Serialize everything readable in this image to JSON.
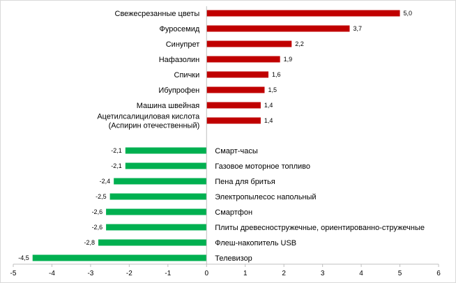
{
  "chart_data": {
    "type": "bar",
    "orientation": "horizontal",
    "xlim": [
      -5,
      6
    ],
    "x_ticks": [
      -5,
      -4,
      -3,
      -2,
      -1,
      0,
      1,
      2,
      3,
      4,
      5,
      6
    ],
    "positive_color": "#c00000",
    "negative_color": "#00b050",
    "grid": false,
    "series": [
      {
        "name": "positive",
        "items": [
          {
            "label": [
              "Свежесрезанные цветы"
            ],
            "value": 5.0,
            "value_label": "5,0"
          },
          {
            "label": [
              "Фуросемид"
            ],
            "value": 3.7,
            "value_label": "3,7"
          },
          {
            "label": [
              "Синупрет"
            ],
            "value": 2.2,
            "value_label": "2,2"
          },
          {
            "label": [
              "Нафазолин"
            ],
            "value": 1.9,
            "value_label": "1,9"
          },
          {
            "label": [
              "Спички"
            ],
            "value": 1.6,
            "value_label": "1,6"
          },
          {
            "label": [
              "Ибупрофен"
            ],
            "value": 1.5,
            "value_label": "1,5"
          },
          {
            "label": [
              "Машина швейная"
            ],
            "value": 1.4,
            "value_label": "1,4"
          },
          {
            "label": [
              "Ацетилсалициловая кислота",
              "(Аспирин отечественный)"
            ],
            "value": 1.4,
            "value_label": "1,4"
          }
        ]
      },
      {
        "name": "negative",
        "items": [
          {
            "label": [
              "Смарт-часы"
            ],
            "value": -2.1,
            "value_label": "-2,1"
          },
          {
            "label": [
              "Газовое моторное топливо"
            ],
            "value": -2.1,
            "value_label": "-2,1"
          },
          {
            "label": [
              "Пена для бритья"
            ],
            "value": -2.4,
            "value_label": "-2,4"
          },
          {
            "label": [
              "Электропылесос напольный"
            ],
            "value": -2.5,
            "value_label": "-2,5"
          },
          {
            "label": [
              "Смартфон"
            ],
            "value": -2.6,
            "value_label": "-2,6"
          },
          {
            "label": [
              "Плиты древесностружечные, ориентированно-стружечные"
            ],
            "value": -2.6,
            "value_label": "-2,6"
          },
          {
            "label": [
              "Флеш-накопитель USB"
            ],
            "value": -2.8,
            "value_label": "-2,8"
          },
          {
            "label": [
              "Телевизор"
            ],
            "value": -4.5,
            "value_label": "-4,5"
          }
        ]
      }
    ]
  }
}
